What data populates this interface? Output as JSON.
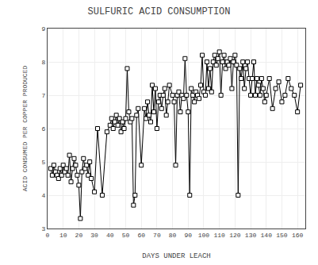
{
  "chart_data": {
    "type": "line",
    "title": "SULFURIC ACID CONSUMPTION",
    "xlabel": "DAYS UNDER LEACH",
    "ylabel": "ACID CONSUMED PER COPPER PRODUCED",
    "x": [
      2,
      3,
      4,
      5,
      6,
      7,
      8,
      9,
      10,
      11,
      12,
      13,
      14,
      15,
      16,
      17,
      18,
      19,
      20,
      21,
      22,
      23,
      24,
      25,
      26,
      27,
      28,
      30,
      32,
      35,
      38,
      40,
      41,
      42,
      43,
      44,
      45,
      46,
      47,
      48,
      49,
      50,
      51,
      52,
      53,
      54,
      55,
      56,
      57,
      58,
      60,
      62,
      63,
      64,
      65,
      66,
      67,
      68,
      69,
      70,
      71,
      72,
      73,
      74,
      75,
      76,
      77,
      78,
      80,
      81,
      82,
      83,
      84,
      85,
      86,
      87,
      88,
      89,
      90,
      91,
      92,
      93,
      94,
      95,
      96,
      97,
      98,
      99,
      100,
      101,
      102,
      103,
      104,
      105,
      106,
      107,
      108,
      109,
      110,
      111,
      112,
      113,
      114,
      115,
      116,
      117,
      118,
      119,
      120,
      121,
      122,
      123,
      124,
      125,
      126,
      127,
      128,
      129,
      130,
      131,
      132,
      133,
      134,
      135,
      136,
      137,
      138,
      139,
      140,
      142,
      144,
      146,
      148,
      150,
      152,
      154,
      156,
      158,
      160,
      162
    ],
    "values": [
      4.8,
      4.6,
      4.9,
      4.7,
      4.6,
      4.5,
      4.8,
      4.6,
      4.9,
      4.7,
      4.8,
      4.6,
      5.2,
      4.4,
      4.8,
      5.1,
      4.9,
      4.6,
      4.3,
      3.3,
      4.7,
      5.1,
      4.8,
      4.9,
      4.6,
      5.0,
      4.5,
      4.1,
      6.0,
      4.0,
      5.9,
      6.1,
      6.3,
      6.0,
      6.2,
      6.4,
      6.1,
      6.3,
      5.9,
      6.2,
      6.0,
      6.3,
      7.8,
      6.5,
      6.2,
      6.3,
      3.7,
      4.0,
      6.4,
      6.6,
      4.9,
      6.6,
      6.3,
      6.8,
      6.4,
      6.2,
      7.3,
      6.5,
      7.2,
      6.0,
      6.8,
      7.0,
      6.6,
      7.0,
      7.2,
      6.4,
      6.8,
      7.3,
      7.0,
      6.8,
      4.9,
      7.0,
      7.1,
      6.5,
      7.0,
      6.9,
      8.1,
      7.0,
      6.5,
      4.0,
      7.2,
      7.0,
      6.8,
      7.1,
      7.0,
      6.9,
      7.3,
      8.2,
      7.1,
      7.0,
      8.0,
      7.2,
      7.8,
      7.1,
      8.0,
      8.2,
      7.9,
      8.1,
      8.3,
      7.0,
      8.0,
      8.2,
      7.8,
      8.0,
      7.9,
      8.1,
      7.2,
      8.0,
      8.2,
      7.9,
      4.0,
      7.8,
      7.5,
      8.0,
      7.2,
      7.8,
      8.0,
      7.5,
      7.0,
      7.5,
      8.0,
      7.0,
      7.5,
      7.3,
      7.0,
      7.5,
      7.2,
      6.8,
      7.0,
      7.5,
      6.6,
      7.2,
      7.4,
      6.8,
      7.0,
      7.5,
      7.2,
      7.0,
      6.5,
      7.3
    ],
    "color": "#000000",
    "marker": "square",
    "xlim": [
      0,
      165
    ],
    "ylim": [
      3,
      9
    ],
    "xticks": [
      0,
      10,
      20,
      30,
      40,
      50,
      60,
      70,
      80,
      90,
      100,
      110,
      120,
      130,
      140,
      150,
      160
    ],
    "yticks": [
      3,
      4,
      5,
      6,
      7,
      8,
      9
    ],
    "grid": true
  }
}
